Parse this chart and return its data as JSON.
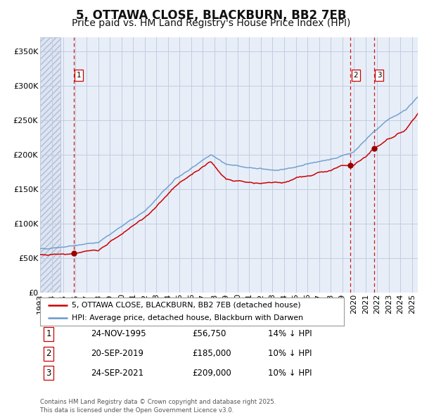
{
  "title": "5, OTTAWA CLOSE, BLACKBURN, BB2 7EB",
  "subtitle": "Price paid vs. HM Land Registry's House Price Index (HPI)",
  "legend_label_red": "5, OTTAWA CLOSE, BLACKBURN, BB2 7EB (detached house)",
  "legend_label_blue": "HPI: Average price, detached house, Blackburn with Darwen",
  "footer": "Contains HM Land Registry data © Crown copyright and database right 2025.\nThis data is licensed under the Open Government Licence v3.0.",
  "transactions": [
    {
      "label": "1",
      "date": "24-NOV-1995",
      "price": 56750,
      "hpi_note": "14% ↓ HPI",
      "year_x": 1995.9
    },
    {
      "label": "2",
      "date": "20-SEP-2019",
      "price": 185000,
      "hpi_note": "10% ↓ HPI",
      "year_x": 2019.72
    },
    {
      "label": "3",
      "date": "24-SEP-2021",
      "price": 209000,
      "hpi_note": "10% ↓ HPI",
      "year_x": 2021.73
    }
  ],
  "ylim": [
    0,
    370000
  ],
  "xlim_start": 1993.0,
  "xlim_end": 2025.5,
  "hatch_end": 1994.75,
  "background_color": "#e8eef8",
  "hatch_facecolor": "#d8e2f0",
  "grid_color": "#c0cce0",
  "red_line_color": "#cc0000",
  "blue_line_color": "#6699cc",
  "dashed_line_color": "#cc0000",
  "marker_color": "#990000",
  "title_fontsize": 12,
  "subtitle_fontsize": 10,
  "tick_fontsize": 8,
  "yticks": [
    0,
    50000,
    100000,
    150000,
    200000,
    250000,
    300000,
    350000
  ],
  "xtick_years": [
    1993,
    1994,
    1995,
    1996,
    1997,
    1998,
    1999,
    2000,
    2001,
    2002,
    2003,
    2004,
    2005,
    2006,
    2007,
    2008,
    2009,
    2010,
    2011,
    2012,
    2013,
    2014,
    2015,
    2016,
    2017,
    2018,
    2019,
    2020,
    2021,
    2022,
    2023,
    2024,
    2025
  ]
}
